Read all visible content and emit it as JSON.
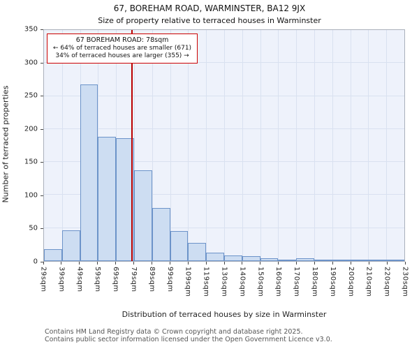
{
  "header": {
    "title": "67, BOREHAM ROAD, WARMINSTER, BA12 9JX",
    "subtitle": "Size of property relative to terraced houses in Warminster"
  },
  "chart_data": {
    "type": "bar",
    "title": "67, BOREHAM ROAD, WARMINSTER, BA12 9JX",
    "xlabel": "Distribution of terraced houses by size in Warminster",
    "ylabel": "Number of terraced properties",
    "ylim": [
      0,
      350
    ],
    "yticks": [
      0,
      50,
      100,
      150,
      200,
      250,
      300,
      350
    ],
    "grid": "on",
    "legend_position": "none",
    "categories": [
      "29sqm",
      "39sqm",
      "49sqm",
      "59sqm",
      "69sqm",
      "79sqm",
      "89sqm",
      "99sqm",
      "109sqm",
      "119sqm",
      "130sqm",
      "140sqm",
      "150sqm",
      "160sqm",
      "170sqm",
      "180sqm",
      "190sqm",
      "200sqm",
      "210sqm",
      "220sqm",
      "230sqm"
    ],
    "values": [
      18,
      47,
      268,
      188,
      186,
      138,
      80,
      46,
      28,
      13,
      9,
      7,
      4,
      2,
      4,
      1,
      1,
      1,
      1,
      1
    ],
    "marker": {
      "value_sqm": 78,
      "color": "#bb0000"
    },
    "annotation": {
      "line1": "67 BOREHAM ROAD: 78sqm",
      "line2": "← 64% of terraced houses are smaller (671)",
      "line3": "34% of terraced houses are larger (355) →"
    }
  },
  "footer": {
    "line1": "Contains HM Land Registry data © Crown copyright and database right 2025.",
    "line2": "Contains public sector information licensed under the Open Government Licence v3.0."
  },
  "colors": {
    "bar_fill": "#cdddf2",
    "bar_border": "#6c93c9",
    "marker_red": "#bb0000",
    "annotation_border": "#cc0000",
    "plot_background": "#eef2fb",
    "gridline": "#d9e1f0",
    "footer_text": "#555555"
  }
}
